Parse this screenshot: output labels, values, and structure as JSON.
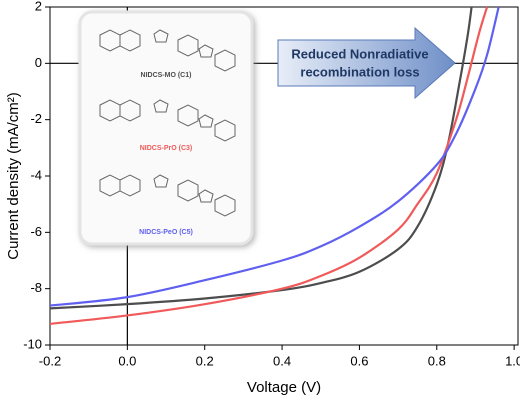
{
  "chart_data": {
    "type": "line",
    "xlabel": "Voltage (V)",
    "ylabel": "Current density (mA/cm²)",
    "xlim": [
      -0.2,
      1.01
    ],
    "ylim": [
      -10,
      2
    ],
    "xticks": [
      -0.2,
      {
        "value": 0,
        "label": "0.0"
      },
      0.2,
      0.4,
      0.6,
      0.8,
      {
        "value": 1,
        "label": "1.0"
      }
    ],
    "yticks": [
      -10,
      -8,
      -6,
      -4,
      -2,
      0,
      2
    ],
    "annotation": [
      "Reduced Nonradiative",
      "recombination loss"
    ],
    "series": [
      {
        "name": "NIDCS-MO (C1)",
        "color": "#4d4d4d",
        "x": [
          -0.2,
          0,
          0.2,
          0.4,
          0.5,
          0.6,
          0.7,
          0.75,
          0.8,
          0.83,
          0.86,
          0.88,
          0.89
        ],
        "values": [
          -8.7,
          -8.55,
          -8.35,
          -8.05,
          -7.8,
          -7.4,
          -6.6,
          -5.8,
          -4.3,
          -2.8,
          -0.6,
          1.0,
          2.0
        ]
      },
      {
        "name": "NIDCS-PrO (C3)",
        "color": "#f05a5a",
        "x": [
          -0.2,
          0,
          0.2,
          0.4,
          0.5,
          0.6,
          0.7,
          0.75,
          0.8,
          0.85,
          0.88,
          0.91,
          0.93
        ],
        "values": [
          -9.25,
          -8.95,
          -8.55,
          -8.0,
          -7.55,
          -6.9,
          -5.9,
          -5.0,
          -3.9,
          -2.0,
          -0.5,
          1.1,
          2.0
        ]
      },
      {
        "name": "NIDCS-PeO (C5)",
        "color": "#6060f0",
        "x": [
          -0.2,
          0,
          0.2,
          0.4,
          0.5,
          0.6,
          0.7,
          0.8,
          0.85,
          0.9,
          0.93,
          0.96
        ],
        "values": [
          -8.6,
          -8.3,
          -7.7,
          -7.0,
          -6.5,
          -5.8,
          -4.9,
          -3.6,
          -2.5,
          -0.9,
          0.3,
          2.0
        ]
      }
    ]
  }
}
